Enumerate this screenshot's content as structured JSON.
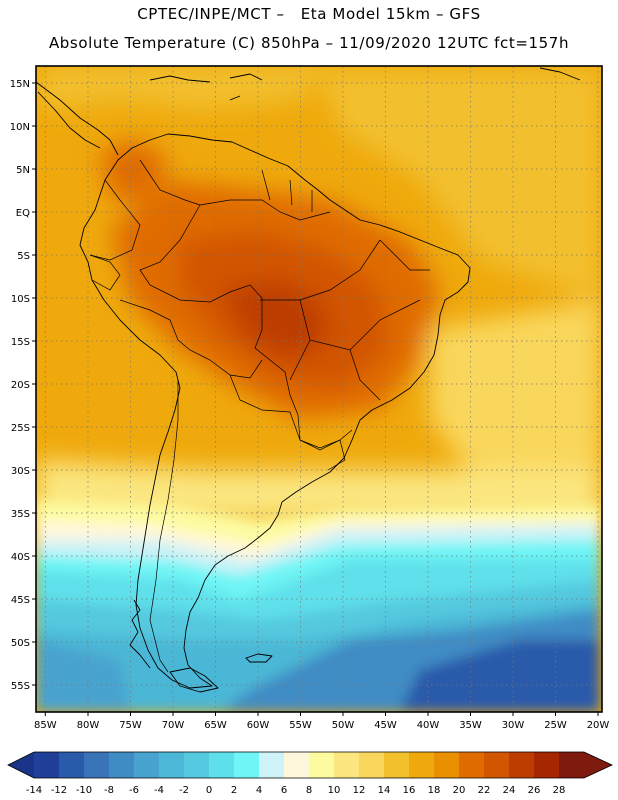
{
  "header": {
    "line1": "CPTEC/INPE/MCT –   Eta Model 15km – GFS",
    "line2": "Absolute Temperature (C) 850hPa – 11/09/2020 12UTC fct=157h"
  },
  "axes": {
    "lat_labels": [
      "15N",
      "10N",
      "5N",
      "EQ",
      "5S",
      "10S",
      "15S",
      "20S",
      "25S",
      "30S",
      "35S",
      "40S",
      "45S",
      "50S",
      "55S"
    ],
    "lon_labels": [
      "85W",
      "80W",
      "75W",
      "70W",
      "65W",
      "60W",
      "55W",
      "50W",
      "45W",
      "40W",
      "35W",
      "30W",
      "25W",
      "20W"
    ]
  },
  "colorbar": {
    "tick_labels": [
      "-14",
      "-12",
      "-10",
      "-8",
      "-6",
      "-4",
      "-2",
      "0",
      "2",
      "4",
      "6",
      "8",
      "10",
      "12",
      "14",
      "16",
      "18",
      "20",
      "22",
      "24",
      "26",
      "28"
    ],
    "colors": [
      "#1f3f99",
      "#2a5aaa",
      "#3a74b8",
      "#3f8cc5",
      "#48a3cf",
      "#4cb7d6",
      "#55c9df",
      "#5ee0ea",
      "#6ff5f5",
      "#cdf2f7",
      "#fff7dc",
      "#fdfba0",
      "#fbe680",
      "#f9d75c",
      "#f2c02d",
      "#efa90c",
      "#e89000",
      "#e06c00",
      "#d25500",
      "#bd3d00",
      "#a52600",
      "#7e1a0e"
    ],
    "under_color": "#1a3488",
    "over_color": "#7e1a0e"
  },
  "icons": {
    "under_arrow": "triangle-left-icon",
    "over_arrow": "triangle-right-icon"
  }
}
